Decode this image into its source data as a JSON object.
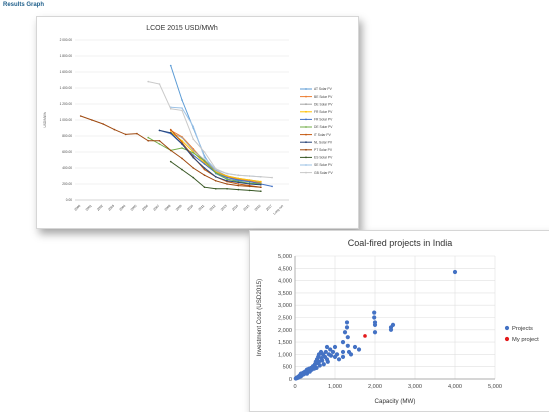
{
  "page": {
    "heading": "Results Graph"
  },
  "chart_data": [
    {
      "type": "line",
      "title": "LCOE 2015 USD/MWh",
      "xlabel": "",
      "ylabel": "USD/MWh",
      "x": [
        "2000",
        "2001",
        "2002",
        "2003",
        "2004",
        "2005",
        "2006",
        "2007",
        "2008",
        "2009",
        "2010",
        "2011",
        "2012",
        "2013",
        "2014",
        "2015",
        "2016",
        "2017",
        "Long run"
      ],
      "yticks": [
        "0.00",
        "200.00",
        "400.00",
        "600.00",
        "800.00",
        "1 000.00",
        "1 200.00",
        "1 400.00",
        "1 600.00",
        "1 800.00",
        "2 000.00"
      ],
      "ylim": [
        0,
        2000
      ],
      "grid": true,
      "legend_position": "right",
      "series": [
        {
          "name": "AT Solar PV",
          "color": "#5b9bd5",
          "values": [
            null,
            null,
            null,
            null,
            null,
            null,
            null,
            null,
            1680,
            1250,
            900,
            550,
            330,
            260,
            240,
            230,
            220,
            null,
            null
          ]
        },
        {
          "name": "BE Solar PV",
          "color": "#ed7d31",
          "values": [
            null,
            null,
            null,
            null,
            null,
            null,
            null,
            null,
            870,
            790,
            640,
            480,
            350,
            290,
            260,
            240,
            210,
            null,
            null
          ]
        },
        {
          "name": "DE Solar PV",
          "color": "#a5a5a5",
          "values": [
            null,
            null,
            null,
            null,
            null,
            null,
            null,
            null,
            840,
            780,
            620,
            500,
            370,
            300,
            270,
            250,
            230,
            null,
            null
          ]
        },
        {
          "name": "FR Solar PV",
          "color": "#ffc000",
          "values": [
            null,
            null,
            null,
            null,
            null,
            null,
            null,
            null,
            850,
            740,
            600,
            460,
            350,
            300,
            270,
            250,
            230,
            null,
            null
          ]
        },
        {
          "name": "FR Solar PV",
          "color": "#4472c4",
          "values": [
            null,
            null,
            null,
            null,
            null,
            null,
            null,
            870,
            830,
            700,
            560,
            450,
            340,
            280,
            250,
            230,
            200,
            170,
            null
          ]
        },
        {
          "name": "DE Solar PV",
          "color": "#70ad47",
          "values": [
            null,
            null,
            null,
            null,
            null,
            null,
            780,
            700,
            620,
            650,
            590,
            490,
            340,
            260,
            230,
            210,
            200,
            null,
            null
          ]
        },
        {
          "name": "IT Solar PV",
          "color": "#c55a11",
          "values": [
            null,
            null,
            null,
            null,
            null,
            null,
            null,
            null,
            880,
            720,
            540,
            380,
            290,
            230,
            200,
            180,
            160,
            null,
            null
          ]
        },
        {
          "name": "NL Solar PV",
          "color": "#264478",
          "values": [
            null,
            null,
            null,
            null,
            null,
            null,
            null,
            870,
            840,
            700,
            530,
            400,
            290,
            240,
            220,
            200,
            190,
            null,
            null
          ]
        },
        {
          "name": "PT Solar PV",
          "color": "#9e480e",
          "values": [
            1050,
            1000,
            950,
            880,
            820,
            830,
            740,
            740,
            620,
            520,
            400,
            310,
            240,
            200,
            180,
            170,
            160,
            null,
            null
          ]
        },
        {
          "name": "ES Solar PV",
          "color": "#375623",
          "values": [
            null,
            null,
            null,
            null,
            null,
            null,
            null,
            null,
            480,
            380,
            280,
            160,
            140,
            140,
            130,
            120,
            110,
            null,
            null
          ]
        },
        {
          "name": "SE Solar PV",
          "color": "#9dc3e6",
          "values": [
            null,
            null,
            null,
            null,
            null,
            null,
            null,
            null,
            1160,
            1150,
            920,
            530,
            380,
            330,
            310,
            300,
            290,
            null,
            null
          ]
        },
        {
          "name": "GB Solar PV",
          "color": "#c9c9c9",
          "values": [
            null,
            null,
            null,
            null,
            null,
            null,
            1480,
            1450,
            1140,
            1120,
            760,
            600,
            390,
            330,
            310,
            300,
            290,
            280,
            null
          ]
        }
      ]
    },
    {
      "type": "scatter",
      "title": "Coal-fired projects in India",
      "xlabel": "Capacity (MW)",
      "ylabel": "Investment Cost (USD2015)",
      "xlim": [
        0,
        5000
      ],
      "ylim": [
        0,
        5000
      ],
      "xticks": [
        "0",
        "1,000",
        "2,000",
        "3,000",
        "4,000",
        "5,000"
      ],
      "yticks": [
        "0",
        "500",
        "1,000",
        "1,500",
        "2,000",
        "2,500",
        "3,000",
        "3,500",
        "4,000",
        "4,500",
        "5,000"
      ],
      "grid": true,
      "legend_position": "right",
      "series": [
        {
          "name": "Projects",
          "color": "#4472c4",
          "points": [
            [
              20,
              20
            ],
            [
              40,
              50
            ],
            [
              60,
              40
            ],
            [
              80,
              90
            ],
            [
              100,
              70
            ],
            [
              120,
              150
            ],
            [
              150,
              110
            ],
            [
              150,
              220
            ],
            [
              180,
              160
            ],
            [
              200,
              250
            ],
            [
              220,
              190
            ],
            [
              250,
              300
            ],
            [
              270,
              260
            ],
            [
              300,
              380
            ],
            [
              300,
              220
            ],
            [
              330,
              330
            ],
            [
              350,
              420
            ],
            [
              370,
              300
            ],
            [
              400,
              450
            ],
            [
              420,
              380
            ],
            [
              450,
              520
            ],
            [
              480,
              420
            ],
            [
              500,
              600
            ],
            [
              500,
              500
            ],
            [
              520,
              700
            ],
            [
              540,
              450
            ],
            [
              550,
              800
            ],
            [
              560,
              650
            ],
            [
              580,
              900
            ],
            [
              600,
              1000
            ],
            [
              600,
              700
            ],
            [
              620,
              550
            ],
            [
              650,
              1100
            ],
            [
              660,
              850
            ],
            [
              680,
              750
            ],
            [
              700,
              1000
            ],
            [
              720,
              600
            ],
            [
              750,
              900
            ],
            [
              770,
              1100
            ],
            [
              800,
              800
            ],
            [
              800,
              1300
            ],
            [
              820,
              700
            ],
            [
              850,
              1000
            ],
            [
              880,
              1200
            ],
            [
              900,
              950
            ],
            [
              950,
              1100
            ],
            [
              1000,
              900
            ],
            [
              1000,
              1300
            ],
            [
              1050,
              1000
            ],
            [
              1100,
              800
            ],
            [
              1200,
              1500
            ],
            [
              1200,
              1100
            ],
            [
              1200,
              900
            ],
            [
              1250,
              1900
            ],
            [
              1300,
              2100
            ],
            [
              1300,
              2300
            ],
            [
              1320,
              1700
            ],
            [
              1320,
              1350
            ],
            [
              1350,
              1100
            ],
            [
              1400,
              1000
            ],
            [
              1500,
              1300
            ],
            [
              1600,
              1200
            ],
            [
              1980,
              2500
            ],
            [
              1980,
              2700
            ],
            [
              2000,
              2300
            ],
            [
              2000,
              2200
            ],
            [
              2000,
              1900
            ],
            [
              2400,
              2100
            ],
            [
              2400,
              2000
            ],
            [
              2450,
              2200
            ],
            [
              4000,
              4350
            ]
          ]
        },
        {
          "name": "My project",
          "color": "#e31a1c",
          "points": [
            [
              1750,
              1750
            ]
          ]
        }
      ]
    }
  ]
}
